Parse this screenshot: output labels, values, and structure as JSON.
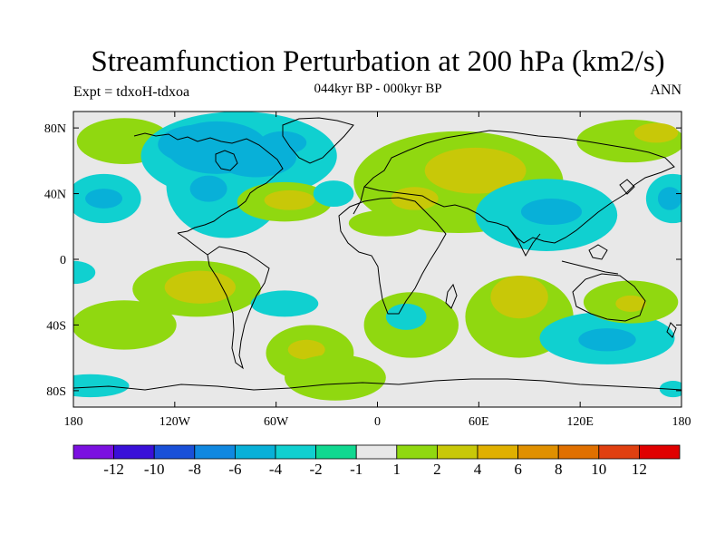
{
  "header": {
    "title": "Streamfunction Perturbation at 200 hPa (km2/s)",
    "subtitle": "044kyr BP - 000kyr BP",
    "left_label": "Expt = tdxoH-tdxoa",
    "right_label": "ANN"
  },
  "map": {
    "projection": "cylindrical-equidistant",
    "lon_range": [
      -180,
      180
    ],
    "lat_range": [
      -90,
      90
    ],
    "lon_ticks": [
      {
        "value": -180,
        "label": "180"
      },
      {
        "value": -120,
        "label": "120W"
      },
      {
        "value": -60,
        "label": "60W"
      },
      {
        "value": 0,
        "label": "0"
      },
      {
        "value": 60,
        "label": "60E"
      },
      {
        "value": 120,
        "label": "120E"
      },
      {
        "value": 180,
        "label": "180"
      }
    ],
    "lat_ticks": [
      {
        "value": 80,
        "label": "80N"
      },
      {
        "value": 40,
        "label": "40N"
      },
      {
        "value": 0,
        "label": "0"
      },
      {
        "value": -40,
        "label": "40S"
      },
      {
        "value": -80,
        "label": "80S"
      }
    ],
    "background_color": "#e8e8e8",
    "coastline_color": "#000000"
  },
  "colorbar": {
    "colors": [
      "#7b10e0",
      "#3a10d8",
      "#1a50d8",
      "#1088e0",
      "#08b0d8",
      "#10d0d0",
      "#10d890",
      "#e8e8e8",
      "#90d810",
      "#c8c808",
      "#e0b000",
      "#e09000",
      "#e07000",
      "#e04010",
      "#e00000"
    ],
    "labels": [
      "-12",
      "-10",
      "-8",
      "-6",
      "-4",
      "-2",
      "-1",
      "1",
      "2",
      "4",
      "6",
      "8",
      "10",
      "12"
    ]
  },
  "chart_data": {
    "type": "heatmap",
    "title": "Streamfunction Perturbation at 200 hPa (km2/s)",
    "subtitle": "044kyr BP - 000kyr BP",
    "levels": [
      -12,
      -10,
      -8,
      -6,
      -4,
      -2,
      -1,
      1,
      2,
      4,
      6,
      8,
      10,
      12
    ],
    "regions": [
      {
        "lon": -150,
        "lat": 72,
        "rlon": 28,
        "rlat": 14,
        "level": 1
      },
      {
        "lon": -82,
        "lat": 63,
        "rlon": 58,
        "rlat": 27,
        "level": -2
      },
      {
        "lon": -105,
        "lat": 70,
        "rlon": 25,
        "rlat": 12,
        "level": -4
      },
      {
        "lon": -90,
        "lat": 45,
        "rlon": 35,
        "rlat": 32,
        "level": -2
      },
      {
        "lon": -95,
        "lat": 68,
        "rlon": 30,
        "rlat": 16,
        "level": -4
      },
      {
        "lon": -72,
        "lat": 62,
        "rlon": 24,
        "rlat": 12,
        "level": -4
      },
      {
        "lon": -56,
        "lat": 71,
        "rlon": 14,
        "rlat": 7,
        "level": -4
      },
      {
        "lon": -100,
        "lat": 43,
        "rlon": 11,
        "rlat": 8,
        "level": -4
      },
      {
        "lon": -162,
        "lat": 37,
        "rlon": 22,
        "rlat": 15,
        "level": -2
      },
      {
        "lon": -162,
        "lat": 37,
        "rlon": 11,
        "rlat": 6,
        "level": -4
      },
      {
        "lon": -55,
        "lat": 35,
        "rlon": 28,
        "rlat": 12,
        "level": 1
      },
      {
        "lon": -52,
        "lat": 36,
        "rlon": 15,
        "rlat": 6,
        "level": 2
      },
      {
        "lon": 48,
        "lat": 47,
        "rlon": 62,
        "rlat": 31,
        "level": 1
      },
      {
        "lon": 58,
        "lat": 54,
        "rlon": 30,
        "rlat": 14,
        "level": 2
      },
      {
        "lon": 22,
        "lat": 37,
        "rlon": 14,
        "rlat": 7,
        "level": 2
      },
      {
        "lon": -26,
        "lat": 40,
        "rlon": 12,
        "rlat": 8,
        "level": -2
      },
      {
        "lon": 5,
        "lat": 22,
        "rlon": 22,
        "rlat": 8,
        "level": 1
      },
      {
        "lon": 100,
        "lat": 27,
        "rlon": 42,
        "rlat": 22,
        "level": -2
      },
      {
        "lon": 103,
        "lat": 29,
        "rlon": 18,
        "rlat": 8,
        "level": -4
      },
      {
        "lon": 150,
        "lat": 72,
        "rlon": 32,
        "rlat": 13,
        "level": 1
      },
      {
        "lon": 165,
        "lat": 77,
        "rlon": 13,
        "rlat": 6,
        "level": 2
      },
      {
        "lon": 175,
        "lat": 37,
        "rlon": 16,
        "rlat": 15,
        "level": -2
      },
      {
        "lon": 173,
        "lat": 37,
        "rlon": 7,
        "rlat": 7,
        "level": -4
      },
      {
        "lon": -180,
        "lat": -8,
        "rlon": 13,
        "rlat": 7,
        "level": -2
      },
      {
        "lon": -107,
        "lat": -18,
        "rlon": 38,
        "rlat": 17,
        "level": 1
      },
      {
        "lon": -105,
        "lat": -17,
        "rlon": 21,
        "rlat": 10,
        "level": 2
      },
      {
        "lon": -150,
        "lat": -40,
        "rlon": 31,
        "rlat": 15,
        "level": 1
      },
      {
        "lon": -55,
        "lat": -27,
        "rlon": 20,
        "rlat": 8,
        "level": -2
      },
      {
        "lon": -40,
        "lat": -57,
        "rlon": 26,
        "rlat": 17,
        "level": 1
      },
      {
        "lon": -42,
        "lat": -55,
        "rlon": 11,
        "rlat": 6,
        "level": 2
      },
      {
        "lon": -25,
        "lat": -72,
        "rlon": 30,
        "rlat": 14,
        "level": 1
      },
      {
        "lon": 20,
        "lat": -40,
        "rlon": 28,
        "rlat": 20,
        "level": 1
      },
      {
        "lon": 17,
        "lat": -35,
        "rlon": 12,
        "rlat": 8,
        "level": -2
      },
      {
        "lon": 84,
        "lat": -35,
        "rlon": 32,
        "rlat": 25,
        "level": 1
      },
      {
        "lon": 84,
        "lat": -23,
        "rlon": 17,
        "rlat": 13,
        "level": 2
      },
      {
        "lon": 136,
        "lat": -48,
        "rlon": 40,
        "rlat": 16,
        "level": -2
      },
      {
        "lon": 136,
        "lat": -49,
        "rlon": 17,
        "rlat": 7,
        "level": -4
      },
      {
        "lon": 150,
        "lat": -26,
        "rlon": 28,
        "rlat": 13,
        "level": 1
      },
      {
        "lon": 150,
        "lat": -27,
        "rlon": 9,
        "rlat": 5,
        "level": 2
      },
      {
        "lon": -170,
        "lat": -77,
        "rlon": 23,
        "rlat": 7,
        "level": -2
      },
      {
        "lon": 175,
        "lat": -79,
        "rlon": 8,
        "rlat": 5,
        "level": -2
      }
    ]
  }
}
